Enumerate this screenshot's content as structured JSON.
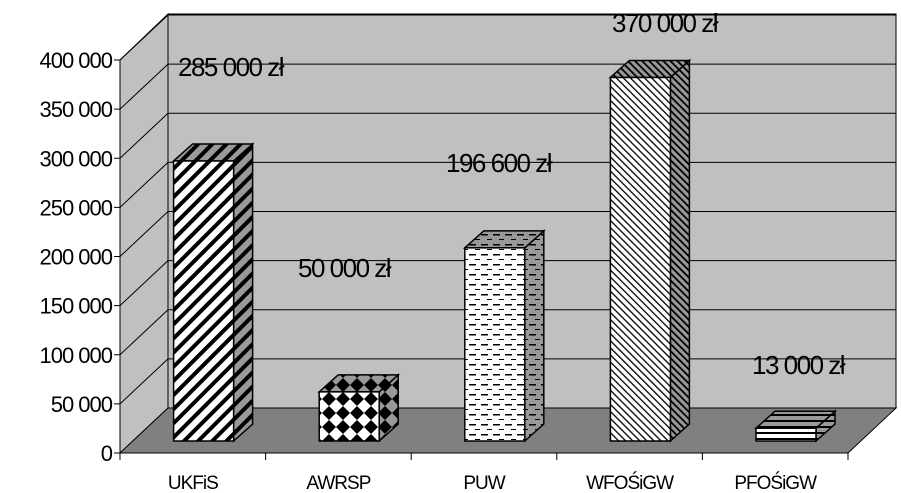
{
  "chart_data": {
    "type": "bar",
    "style": "3d-column",
    "categories": [
      "UKFiS",
      "AWRSP",
      "PUW",
      "WFOŚiGW",
      "PFOŚiGW"
    ],
    "values": [
      285000,
      50000,
      196600,
      370000,
      13000
    ],
    "data_labels": [
      "285 000 zł",
      "50 000 zł",
      "196 600 zł",
      "370 000 zł",
      "13 000 zł"
    ],
    "y_ticks": [
      0,
      50000,
      100000,
      150000,
      200000,
      250000,
      300000,
      350000,
      400000
    ],
    "y_tick_labels": [
      "0",
      "50 000",
      "100 000",
      "150 000",
      "200 000",
      "250 000",
      "300 000",
      "350 000",
      "400 000"
    ],
    "ylim": [
      0,
      400000
    ],
    "grid": true,
    "legend": "none",
    "patterns": [
      "diagonal-stripes",
      "diamond-checker",
      "dashes",
      "fine-diagonal",
      "horizontal-stripes"
    ],
    "colors": {
      "back_wall": "#c0c0c0",
      "floor": "#808080",
      "bar": "#ffffff",
      "bar_outline": "#000000"
    }
  }
}
